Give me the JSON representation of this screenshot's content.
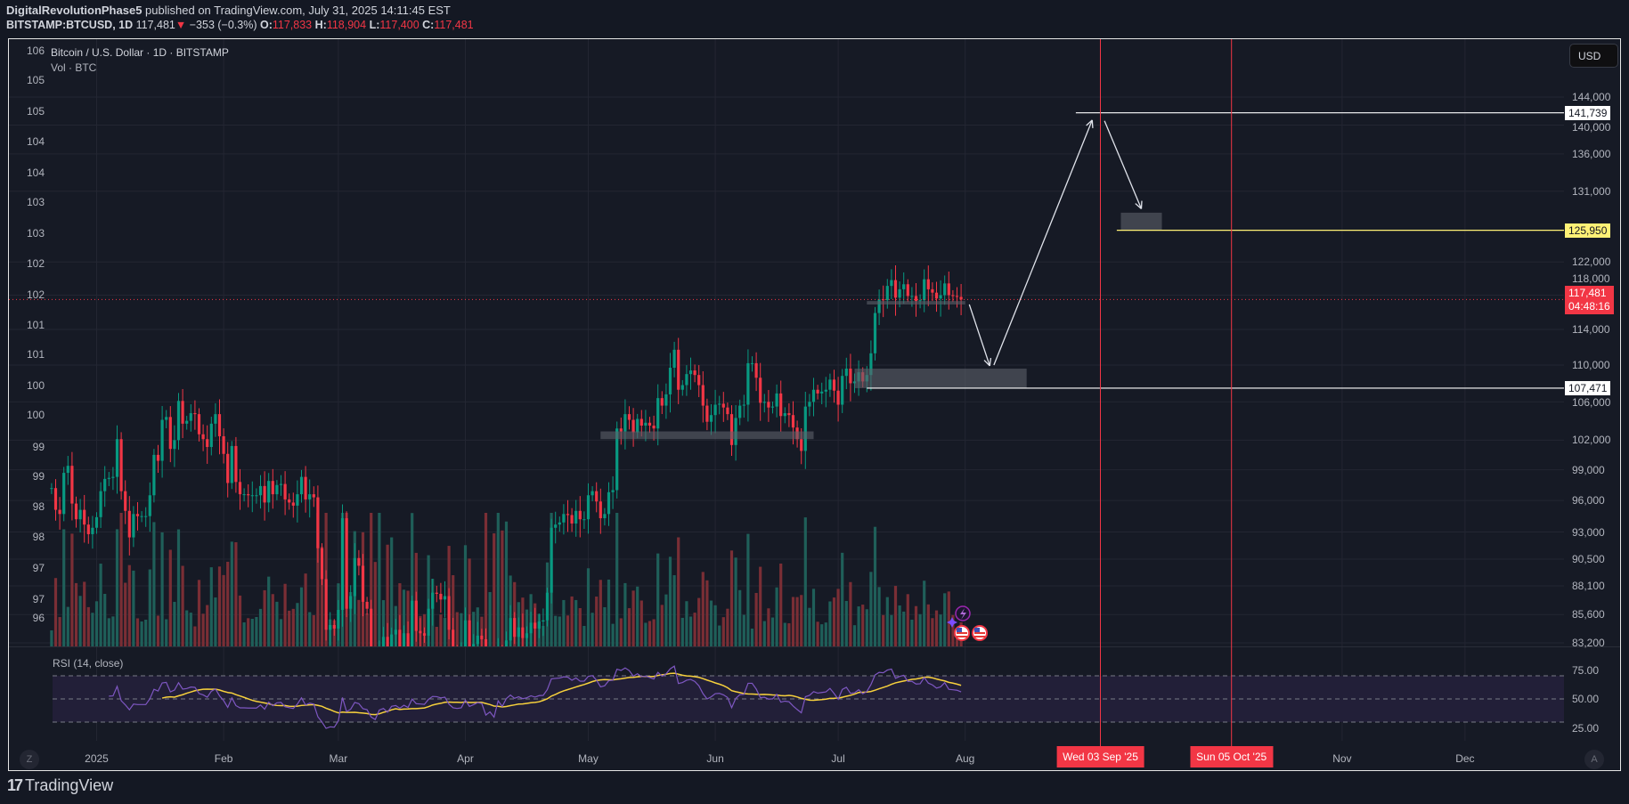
{
  "header": {
    "publisher": "DigitalRevolutionPhase5",
    "published_text": "published on TradingView.com, July 31, 2025 14:11:45 EST",
    "symbol": "BITSTAMP:BTCUSD, 1D",
    "last": "117,481",
    "change": "−353 (−0.3%)",
    "o_label": "O:",
    "o": "117,833",
    "h_label": "H:",
    "h": "118,904",
    "l_label": "L:",
    "l": "117,400",
    "c_label": "C:",
    "c": "117,481"
  },
  "legend": {
    "title": "Bitcoin / U.S. Dollar · 1D · BITSTAMP",
    "volume": "Vol · BTC"
  },
  "currency_button": "USD",
  "left_axis": [
    "106",
    "105",
    "105",
    "104",
    "104",
    "103",
    "103",
    "102",
    "102",
    "101",
    "101",
    "100",
    "100",
    "99",
    "99",
    "98",
    "98",
    "97",
    "97",
    "96"
  ],
  "rsi": {
    "label": "RSI (14, close)",
    "ticks": [
      {
        "value": 75,
        "label": "75.00"
      },
      {
        "value": 50,
        "label": "50.00"
      },
      {
        "value": 25,
        "label": "25.00"
      }
    ]
  },
  "current_price": {
    "value": 117481,
    "label": "117,481",
    "countdown": "04:48:16"
  },
  "buttons": {
    "z": "Z",
    "a": "A"
  },
  "brand": "TradingView",
  "colors": {
    "up": "#089981",
    "down": "#f23645",
    "background": "#161a25",
    "grid": "#232632",
    "rsi_line": "#7e57c2",
    "rsi_ma": "#f7d13c",
    "target_line": "#fff176",
    "date_marker": "#f23645"
  },
  "chart_data": {
    "type": "candlestick",
    "symbol": "BITSTAMP:BTCUSD",
    "interval": "1D",
    "start_date": "2024-12-21",
    "close": [
      97200,
      95100,
      94700,
      98700,
      99400,
      95700,
      94200,
      95100,
      93700,
      92800,
      93400,
      94400,
      96900,
      98100,
      98200,
      98300,
      102100,
      96900,
      95000,
      92500,
      94700,
      94500,
      94500,
      94500,
      96500,
      100500,
      99900,
      104100,
      104400,
      101100,
      102000,
      106100,
      103700,
      104000,
      104800,
      104700,
      102600,
      102100,
      101300,
      103700,
      104700,
      102400,
      100600,
      97700,
      101400,
      97800,
      96600,
      96600,
      96500,
      96500,
      96500,
      97400,
      95800,
      97900,
      96600,
      97500,
      97600,
      96100,
      95800,
      95500,
      96600,
      98300,
      96100,
      96600,
      96300,
      91500,
      88700,
      84300,
      84700,
      84400,
      86000,
      94300,
      86100,
      87200,
      90600,
      89900,
      86700,
      86100,
      80700,
      78500,
      82900,
      83700,
      81000,
      83900,
      84300,
      82600,
      84000,
      82700,
      86800,
      84200,
      84000,
      83800,
      86100,
      87500,
      87400,
      86900,
      87200,
      84300,
      82600,
      82300,
      82500,
      85100,
      82500,
      83100,
      83800,
      83500,
      78200,
      79200,
      76300,
      82600,
      79600,
      83400,
      85300,
      83700,
      84500,
      83600,
      84000,
      84900,
      84400,
      85000,
      85100,
      87500,
      93400,
      93700,
      93900,
      94700,
      94600,
      93800,
      95000,
      94200,
      94200,
      96500,
      96900,
      95900,
      94300,
      94700,
      96800,
      97000,
      103200,
      102900,
      104700,
      104100,
      102800,
      104200,
      103500,
      103800,
      103500,
      103200,
      106400,
      105600,
      106800,
      109700,
      111700,
      107300,
      107800,
      109000,
      109400,
      108900,
      107800,
      105600,
      103900,
      104600,
      105700,
      105800,
      105400,
      104700,
      101500,
      104300,
      105600,
      105700,
      110200,
      110200,
      108600,
      105900,
      106000,
      105400,
      105500,
      106900,
      104500,
      104800,
      104600,
      103300,
      102100,
      100900,
      105500,
      106000,
      107300,
      106900,
      107100,
      107300,
      108400,
      107200,
      105700,
      108800,
      109600,
      108000,
      108200,
      109200,
      108200,
      108900,
      111300,
      115900,
      117500,
      117400,
      119100,
      119800,
      117700,
      118700,
      119300,
      117900,
      117900,
      117300,
      117400,
      119900,
      118700,
      118300,
      117600,
      118000,
      119400,
      118000,
      117900,
      117800,
      117481
    ],
    "y_scale": "log",
    "y_ticks": [
      {
        "value": 144000,
        "label": "144,000"
      },
      {
        "value": 140000,
        "label": "140,000"
      },
      {
        "value": 136000,
        "label": "136,000"
      },
      {
        "value": 131000,
        "label": "131,000"
      },
      {
        "value": 122000,
        "label": "122,000"
      },
      {
        "value": 118000,
        "label": "118,000"
      },
      {
        "value": 114000,
        "label": "114,000"
      },
      {
        "value": 110000,
        "label": "110,000"
      },
      {
        "value": 106000,
        "label": "106,000"
      },
      {
        "value": 102000,
        "label": "102,000"
      },
      {
        "value": 99000,
        "label": "99,000"
      },
      {
        "value": 96000,
        "label": "96,000"
      },
      {
        "value": 93000,
        "label": "93,000"
      },
      {
        "value": 90500,
        "label": "90,500"
      },
      {
        "value": 88100,
        "label": "88,100"
      },
      {
        "value": 85600,
        "label": "85,600"
      },
      {
        "value": 83200,
        "label": "83,200"
      }
    ],
    "x_ticks": [
      {
        "date": "2025-01-01",
        "label": "2025"
      },
      {
        "date": "2025-02-01",
        "label": "Feb"
      },
      {
        "date": "2025-03-01",
        "label": "Mar"
      },
      {
        "date": "2025-04-01",
        "label": "Apr"
      },
      {
        "date": "2025-05-01",
        "label": "May"
      },
      {
        "date": "2025-06-01",
        "label": "Jun"
      },
      {
        "date": "2025-07-01",
        "label": "Jul"
      },
      {
        "date": "2025-08-01",
        "label": "Aug"
      },
      {
        "date": "2025-11-01",
        "label": "Nov"
      },
      {
        "date": "2025-12-01",
        "label": "Dec"
      }
    ],
    "grid": true,
    "annotations": {
      "hlines": [
        {
          "price": 141739,
          "label": "141,739",
          "from": "2025-08-28",
          "color": "#ffffff"
        },
        {
          "price": 125950,
          "label": "125,950",
          "from": "2025-09-07",
          "color": "#fff176"
        },
        {
          "price": 107471,
          "label": "107,471",
          "from": "2025-07-08",
          "color": "#ffffff"
        }
      ],
      "vlines": [
        {
          "date": "2025-09-03",
          "label": "Wed 03 Sep '25"
        },
        {
          "date": "2025-10-05",
          "label": "Sun 05 Oct '25"
        }
      ],
      "zones": [
        {
          "from": "2025-05-04",
          "to": "2025-06-25",
          "low": 102100,
          "high": 102900
        },
        {
          "from": "2025-07-08",
          "to": "2025-08-01",
          "low": 116900,
          "high": 117300
        },
        {
          "from": "2025-07-05",
          "to": "2025-08-16",
          "low": 107471,
          "high": 109600
        },
        {
          "from": "2025-09-08",
          "to": "2025-09-18",
          "low": 125950,
          "high": 128200
        }
      ],
      "arrows": [
        {
          "from": [
            "2025-08-02",
            116900
          ],
          "to": [
            "2025-08-07",
            109900
          ]
        },
        {
          "from": [
            "2025-08-08",
            110000
          ],
          "to": [
            "2025-09-01",
            140700
          ]
        },
        {
          "from": [
            "2025-09-04",
            140600
          ],
          "to": [
            "2025-09-13",
            128700
          ]
        }
      ]
    },
    "indicators": [
      {
        "name": "Volume"
      },
      {
        "name": "RSI",
        "length": 14,
        "source": "close",
        "levels": [
          70,
          50,
          30
        ],
        "ma_length": 14
      }
    ]
  }
}
